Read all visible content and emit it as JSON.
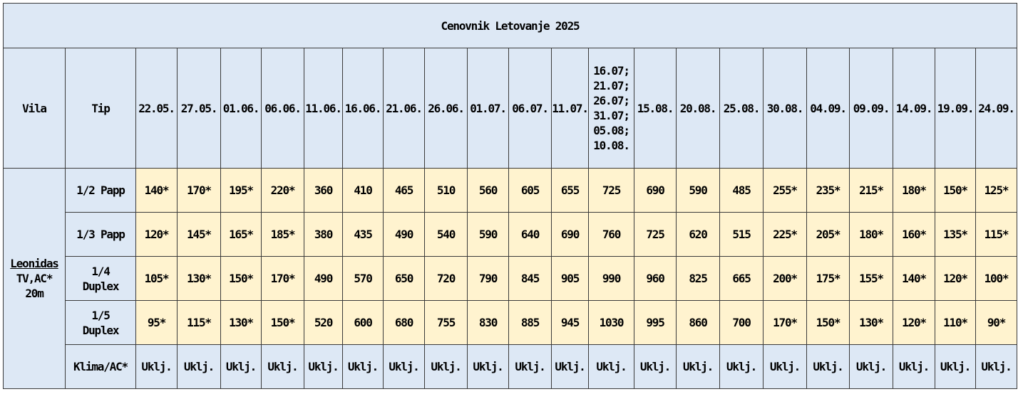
{
  "title": "Cenovnik Letovanje 2025",
  "headers": {
    "vila": "Vila",
    "tip": "Tip",
    "dates": [
      "22.05.",
      "27.05.",
      "01.06.",
      "06.06.",
      "11.06.",
      "16.06.",
      "21.06.",
      "26.06.",
      "01.07.",
      "06.07.",
      "11.07.",
      "16.07;",
      "15.08.",
      "20.08.",
      "25.08.",
      "30.08.",
      "04.09.",
      "09.09.",
      "14.09.",
      "19.09.",
      "24.09."
    ],
    "multi_date_lines": [
      "16.07;",
      "21.07;",
      "26.07;",
      "31.07;",
      "05.08;",
      "10.08."
    ]
  },
  "vila": {
    "name": "Leonidas",
    "line2": "TV,AC*",
    "line3": "20m"
  },
  "rows": [
    {
      "tip": "1/2 Papp",
      "values": [
        "140*",
        "170*",
        "195*",
        "220*",
        "360",
        "410",
        "465",
        "510",
        "560",
        "605",
        "655",
        "725",
        "690",
        "590",
        "485",
        "255*",
        "235*",
        "215*",
        "180*",
        "150*",
        "125*"
      ]
    },
    {
      "tip": "1/3 Papp",
      "values": [
        "120*",
        "145*",
        "165*",
        "185*",
        "380",
        "435",
        "490",
        "540",
        "590",
        "640",
        "690",
        "760",
        "725",
        "620",
        "515",
        "225*",
        "205*",
        "180*",
        "160*",
        "135*",
        "115*"
      ]
    },
    {
      "tip": "1/4 Duplex",
      "tip_lines": [
        "1/4",
        "Duplex"
      ],
      "values": [
        "105*",
        "130*",
        "150*",
        "170*",
        "490",
        "570",
        "650",
        "720",
        "790",
        "845",
        "905",
        "990",
        "960",
        "825",
        "665",
        "200*",
        "175*",
        "155*",
        "140*",
        "120*",
        "100*"
      ]
    },
    {
      "tip": "1/5 Duplex",
      "tip_lines": [
        "1/5",
        "Duplex"
      ],
      "values": [
        "95*",
        "115*",
        "130*",
        "150*",
        "520",
        "600",
        "680",
        "755",
        "830",
        "885",
        "945",
        "1030",
        "995",
        "860",
        "700",
        "170*",
        "150*",
        "130*",
        "120*",
        "110*",
        "90*"
      ]
    }
  ],
  "klima": {
    "label": "Klima/AC*",
    "values": [
      "Uklj.",
      "Uklj.",
      "Uklj.",
      "Uklj.",
      "Uklj.",
      "Uklj.",
      "Uklj.",
      "Uklj.",
      "Uklj.",
      "Uklj.",
      "Uklj.",
      "Uklj.",
      "Uklj.",
      "Uklj.",
      "Uklj.",
      "Uklj.",
      "Uklj.",
      "Uklj.",
      "Uklj.",
      "Uklj.",
      "Uklj."
    ]
  }
}
